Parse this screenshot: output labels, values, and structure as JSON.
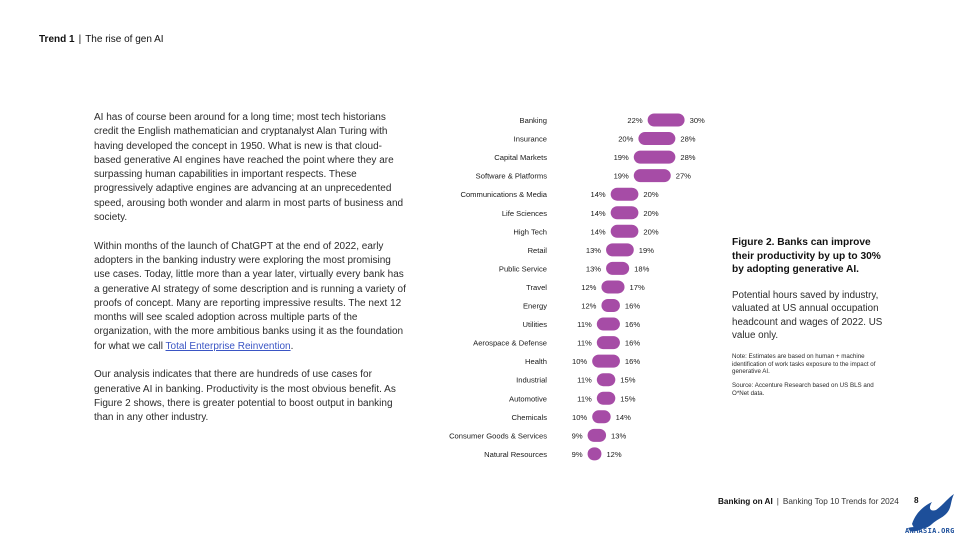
{
  "header": {
    "trend": "Trend 1",
    "separator": "|",
    "title": "The rise of gen AI"
  },
  "body": {
    "p1": "AI has of course been around for a long time; most tech historians credit the English mathematician and cryptanalyst Alan Turing with having developed the concept in 1950. What is new is that cloud-based generative AI engines have reached the point where they are surpassing human capabilities in important respects. These progressively adaptive engines are advancing at an unprecedented speed, arousing both wonder and alarm in most parts of business and society.",
    "p2_text": "Within months of the launch of ChatGPT at the end of 2022, early adopters in the banking industry were exploring the most promising use cases. Today, little more than a year later, virtually every bank has a generative AI strategy of some description and is running a variety of proofs of concept. Many are reporting impressive results. The next 12 months will see scaled adoption across multiple parts of the organization, with the more ambitious banks using it as the foundation for what we call ",
    "p2_link": "Total Enterprise Reinvention",
    "p2_end": ".",
    "p3": "Our analysis indicates that there are hundreds of use cases for generative AI in banking. Productivity is the most obvious benefit. As Figure 2 shows, there is greater potential to boost output in banking than in any other industry."
  },
  "figure": {
    "title": "Figure 2. Banks can improve their productivity by up to 30% by adopting generative AI.",
    "description": "Potential hours saved by industry, valuated at US annual occupation headcount and wages of 2022. US value only.",
    "note": "Note: Estimates are based on human + machine identification of work tasks exposure to the impact of generative AI.",
    "source": "Source: Accenture Research based on US BLS and O*Net data."
  },
  "footer": {
    "brand": "Banking on AI",
    "separator": "|",
    "title": "Banking Top 10 Trends for 2024",
    "page": "8"
  },
  "logo": {
    "text": "ANMASIA.ORG",
    "color": "#1d4f9a"
  },
  "colors": {
    "bar": "#a64ca6",
    "accent_link": "#3a55c4"
  },
  "chart_data": {
    "type": "range-bar",
    "categories": [
      "Banking",
      "Insurance",
      "Capital Markets",
      "Software & Platforms",
      "Communications & Media",
      "Life Sciences",
      "High Tech",
      "Retail",
      "Public Service",
      "Travel",
      "Energy",
      "Utilities",
      "Aerospace & Defense",
      "Health",
      "Industrial",
      "Automotive",
      "Chemicals",
      "Consumer Goods & Services",
      "Natural Resources"
    ],
    "series": [
      {
        "values": [
          22,
          20,
          19,
          19,
          14,
          14,
          14,
          13,
          13,
          12,
          12,
          11,
          11,
          10,
          11,
          11,
          10,
          9,
          9
        ]
      },
      {
        "values": [
          30,
          28,
          28,
          27,
          20,
          20,
          20,
          19,
          18,
          17,
          16,
          16,
          16,
          16,
          15,
          15,
          14,
          13,
          12
        ]
      }
    ],
    "unit": "%"
  }
}
